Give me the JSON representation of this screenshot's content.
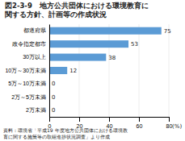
{
  "chart_data": {
    "type": "bar",
    "orientation": "horizontal",
    "title": [
      "図2-3-9　地方公共団体における環境教育に",
      "関する方針、計画等の作成状況"
    ],
    "categories": [
      "都道府県",
      "政令指定都市",
      "30万以上",
      "10万～30万未満",
      "5万～10万未満",
      "2万～5万未満",
      "2万未満"
    ],
    "values": [
      75,
      53,
      38,
      12,
      0,
      0,
      0
    ],
    "color": "#5b9bd5",
    "xlim": [
      0,
      80
    ],
    "xticks": [
      0,
      20,
      40,
      60,
      80
    ],
    "xlabel": "(%)",
    "annotations": [
      "資料：環境省「平成19 年度地方公共団体における環境教",
      "育に関する施策等の取組進捗状況調査」より作成"
    ],
    "grid": true,
    "data_labels": true
  }
}
